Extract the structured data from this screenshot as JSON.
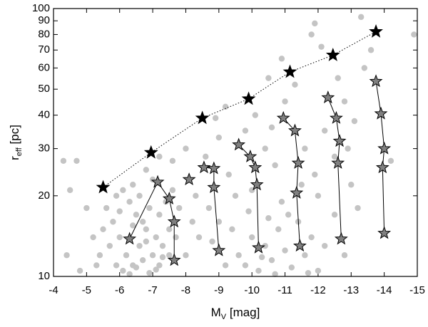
{
  "chart_data": {
    "type": "scatter",
    "x_label": {
      "main": "M",
      "sub": "V",
      "rest": " [mag]"
    },
    "y_label": {
      "main": "r",
      "sub": "eff",
      "rest": " [pc]"
    },
    "xlim": [
      -4,
      -15
    ],
    "xticks": [
      -4,
      -5,
      -6,
      -7,
      -8,
      -9,
      -10,
      -11,
      -12,
      -13,
      -14,
      -15
    ],
    "ylim": [
      10,
      100
    ],
    "yticks": [
      10,
      20,
      30,
      40,
      50,
      60,
      70,
      80,
      90,
      100
    ],
    "ylog": true,
    "series": [
      {
        "color": "#c4c4c4",
        "marker": "circle",
        "line": "none",
        "x": [
          -5.6,
          -5.8,
          -6.0,
          -6.2,
          -6.4,
          -6.6,
          -6.8,
          -7.0,
          -7.2,
          -5.9,
          -6.1,
          -6.3,
          -6.5,
          -6.7,
          -6.9,
          -7.1,
          -7.3,
          -7.5,
          -7.7,
          -5.7,
          -5.9,
          -6.1,
          -6.3,
          -6.5,
          -6.7,
          -6.9,
          -7.1,
          -7.3,
          -7.5,
          -5.5,
          -5.4,
          -5.3,
          -6.0,
          -6.4,
          -6.8,
          -7.2,
          -7.4,
          -7.6,
          -7.8,
          -8.0,
          -8.2,
          -5.2,
          -4.8,
          -4.4,
          -4.5,
          -4.3,
          -4.7,
          -5.0,
          -6.6,
          -7.0,
          -9.6,
          -9.8,
          -10.0,
          -10.2,
          -10.4,
          -10.6,
          -10.8,
          -11.0,
          -11.2,
          -11.4,
          -11.6,
          -11.8,
          -12.0,
          -9.4,
          -9.2,
          -10.5,
          -11.1,
          -10.7,
          -10.3,
          -11.7,
          -12.2,
          -12.5,
          -12.8,
          -9.9,
          -10.9,
          -8.3,
          -8.6,
          -9.0,
          -9.3,
          -9.5,
          -9.8,
          -10.1,
          -10.4,
          -10.7,
          -11.0,
          -11.3,
          -11.6,
          -11.9,
          -12.2,
          -12.5,
          -12.8,
          -13.1,
          -13.4,
          -13.6,
          -13.3,
          -11.8,
          -11.9,
          -12.1,
          -14.9,
          -8.9,
          -8.0,
          -7.6,
          -7.2,
          -6.8,
          -6.4,
          -9.2,
          -10.5,
          -10.9,
          -12.6,
          -13.0,
          -13.2,
          -12.0,
          -11.5,
          -8.7,
          -8.4,
          -8.8,
          -9.0,
          -14.2,
          -12.9,
          -10.0,
          -10.6
        ],
        "values": [
          18,
          16,
          14,
          12,
          11,
          13,
          15,
          12,
          11,
          20,
          21,
          19,
          17,
          16,
          18,
          14,
          13,
          12,
          14,
          13,
          11,
          10.5,
          10.2,
          10.8,
          11.5,
          10.3,
          10.6,
          11.8,
          15,
          15,
          12,
          11,
          17.5,
          15.5,
          13.5,
          17,
          19,
          21,
          18,
          12,
          16,
          14,
          10.5,
          12,
          21,
          27,
          27,
          18,
          20,
          23,
          12,
          11,
          14,
          10.5,
          13,
          11.5,
          15,
          12.5,
          10.8,
          16,
          12,
          14,
          10.5,
          15,
          11,
          16.5,
          17,
          10.2,
          11.8,
          10.3,
          13,
          17,
          12,
          17.5,
          19,
          20,
          28,
          33,
          24,
          20,
          35,
          40,
          30,
          26,
          45,
          52,
          30,
          24,
          35,
          28,
          45,
          38,
          60,
          70,
          93,
          80,
          88,
          72,
          80,
          39,
          30,
          27,
          28,
          25,
          22,
          43,
          55,
          65,
          55,
          22,
          18,
          20,
          22,
          18,
          14,
          13.5,
          16,
          27,
          30,
          21,
          36
        ]
      },
      {
        "color": "#000000",
        "marker": "star",
        "line": "dotted",
        "x": [
          -5.5,
          -6.95,
          -8.5,
          -9.9,
          -11.15,
          -12.45,
          -13.75
        ],
        "values": [
          21.5,
          29,
          39,
          46,
          58,
          67,
          82
        ]
      },
      {
        "color": "#808080",
        "marker": "star",
        "line": "solid",
        "x": [
          -6.3,
          -7.15,
          -7.5,
          -7.65,
          -7.65
        ],
        "values": [
          13.8,
          22.5,
          19.5,
          16,
          11.5
        ]
      },
      {
        "color": "#808080",
        "marker": "star",
        "line": "none",
        "x": [
          -8.1
        ],
        "values": [
          23
        ]
      },
      {
        "color": "#808080",
        "marker": "star",
        "line": "solid",
        "x": [
          -8.55,
          -8.85,
          -8.85,
          -9.0
        ],
        "values": [
          25.5,
          25.3,
          21.5,
          12.5
        ]
      },
      {
        "color": "#808080",
        "marker": "star",
        "line": "solid",
        "x": [
          -9.6,
          -9.95,
          -10.1,
          -10.15,
          -10.2
        ],
        "values": [
          31,
          28,
          25.5,
          22,
          12.8
        ]
      },
      {
        "color": "#808080",
        "marker": "star",
        "line": "solid",
        "x": [
          -10.95,
          -11.3,
          -11.4,
          -11.35,
          -11.45
        ],
        "values": [
          39,
          35,
          26.5,
          20.5,
          13
        ]
      },
      {
        "color": "#808080",
        "marker": "star",
        "line": "solid",
        "x": [
          -12.3,
          -12.55,
          -12.65,
          -12.6,
          -12.7
        ],
        "values": [
          46.5,
          39,
          32,
          26.5,
          13.8
        ]
      },
      {
        "color": "#808080",
        "marker": "star",
        "line": "solid",
        "x": [
          -13.75,
          -13.9,
          -14.0,
          -13.95,
          -14.0
        ],
        "values": [
          53.5,
          40.5,
          30,
          25.5,
          14.5
        ]
      }
    ]
  }
}
